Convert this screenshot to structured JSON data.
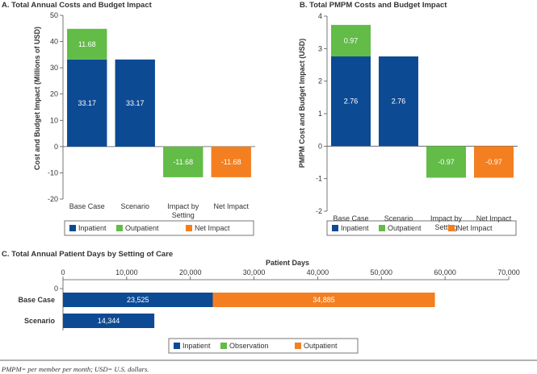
{
  "colors": {
    "inpatient": "#0d4a94",
    "outpatient": "#62bc47",
    "net_impact": "#f47f20",
    "observation": "#62bc47"
  },
  "footnote": "PMPM= per member per month; USD= U.S. dollars.",
  "chart_data": [
    {
      "id": "A",
      "type": "bar",
      "stacked": true,
      "title": "A. Total Annual Costs and Budget Impact",
      "ylabel": "Cost and Budget Impact (Millions of USD)",
      "ylim": [
        -20,
        50
      ],
      "yticks": [
        -20,
        -10,
        0,
        10,
        20,
        30,
        40,
        50
      ],
      "categories": [
        "Base Case",
        "Scenario",
        "Impact by Setting",
        "Net Impact"
      ],
      "category_lines": [
        [
          "Base Case"
        ],
        [
          "Scenario"
        ],
        [
          "Impact by",
          "Setting"
        ],
        [
          "Net Impact"
        ]
      ],
      "series": [
        {
          "name": "Inpatient",
          "color_key": "inpatient",
          "values": [
            33.17,
            33.17,
            null,
            null
          ],
          "labels": [
            "33.17",
            "33.17",
            "",
            ""
          ]
        },
        {
          "name": "Outpatient",
          "color_key": "outpatient",
          "values": [
            11.68,
            null,
            -11.68,
            null
          ],
          "labels": [
            "11.68",
            "",
            "-11.68",
            ""
          ]
        },
        {
          "name": "Net Impact",
          "color_key": "net_impact",
          "values": [
            null,
            null,
            null,
            -11.68
          ],
          "labels": [
            "",
            "",
            "",
            "-11.68"
          ]
        }
      ],
      "legend": [
        "Inpatient",
        "Outpatient",
        "Net Impact"
      ]
    },
    {
      "id": "B",
      "type": "bar",
      "stacked": true,
      "title": "B. Total PMPM Costs and Budget Impact",
      "ylabel": "PMPM Cost and Budget Impact (USD)",
      "ylim": [
        -2,
        4
      ],
      "yticks": [
        -2,
        -1,
        0,
        1,
        2,
        3,
        4
      ],
      "categories": [
        "Base Case",
        "Scenario",
        "Impact by Setting",
        "Net Impact"
      ],
      "category_lines": [
        [
          "Base Case"
        ],
        [
          "Scenario"
        ],
        [
          "Impact by",
          "Setting"
        ],
        [
          "Net Impact"
        ]
      ],
      "series": [
        {
          "name": "Inpatient",
          "color_key": "inpatient",
          "values": [
            2.76,
            2.76,
            null,
            null
          ],
          "labels": [
            "2.76",
            "2.76",
            "",
            ""
          ]
        },
        {
          "name": "Outpatient",
          "color_key": "outpatient",
          "values": [
            0.97,
            null,
            -0.97,
            null
          ],
          "labels": [
            "0.97",
            "",
            "-0.97",
            ""
          ]
        },
        {
          "name": "Net Impact",
          "color_key": "net_impact",
          "values": [
            null,
            null,
            null,
            -0.97
          ],
          "labels": [
            "",
            "",
            "",
            "-0.97"
          ]
        }
      ],
      "legend": [
        "Inpatient",
        "Outpatient",
        "Net Impact"
      ]
    },
    {
      "id": "C",
      "type": "bar",
      "orientation": "horizontal",
      "stacked": true,
      "title": "C. Total Annual Patient Days by Setting of Care",
      "xlabel": "Patient Days",
      "xlim": [
        0,
        70000
      ],
      "xticks": [
        0,
        10000,
        20000,
        30000,
        40000,
        50000,
        60000,
        70000
      ],
      "xtick_labels": [
        "0",
        "10,000",
        "20,000",
        "30,000",
        "40,000",
        "50,000",
        "60,000",
        "70,000"
      ],
      "categories": [
        "Base Case",
        "Scenario"
      ],
      "series": [
        {
          "name": "Inpatient",
          "color_key": "inpatient",
          "values": [
            23525,
            14344
          ],
          "labels": [
            "23,525",
            "14,344"
          ]
        },
        {
          "name": "Observation",
          "color_key": "observation",
          "values": [
            0,
            0
          ],
          "labels": [
            "",
            ""
          ]
        },
        {
          "name": "Outpatient",
          "color_key": "net_impact",
          "values": [
            34885,
            0
          ],
          "labels": [
            "34,885",
            ""
          ]
        }
      ],
      "legend": [
        "Inpatient",
        "Observation",
        "Outpatient"
      ]
    }
  ]
}
